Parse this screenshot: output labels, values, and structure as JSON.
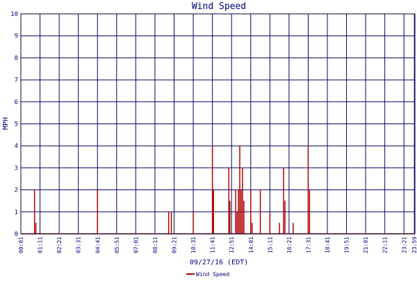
{
  "chart_data": {
    "type": "bar",
    "title": "Wind Speed",
    "ylabel": "MPH",
    "xlabel": "09/27/16 (EDT)",
    "ylim": [
      0,
      10
    ],
    "yticks": [
      "0",
      "1",
      "2",
      "3",
      "4",
      "5",
      "6",
      "7",
      "8",
      "9",
      "10"
    ],
    "xlim": [
      "00:01",
      "24:01"
    ],
    "xticks": [
      "00:01",
      "01:11",
      "02:21",
      "03:31",
      "04:41",
      "05:51",
      "07:01",
      "08:11",
      "09:21",
      "10:31",
      "11:41",
      "12:51",
      "14:01",
      "15:11",
      "16:21",
      "17:31",
      "18:41",
      "19:51",
      "21:01",
      "22:11",
      "23:21",
      "23:59"
    ],
    "grid": true,
    "legend_position": "bottom-center",
    "series": [
      {
        "name": "Wind Speed",
        "color": "#b30000",
        "points": [
          {
            "t": "00:51",
            "v": 2
          },
          {
            "t": "00:56",
            "v": 0.5
          },
          {
            "t": "04:41",
            "v": 2
          },
          {
            "t": "09:01",
            "v": 1
          },
          {
            "t": "09:11",
            "v": 1
          },
          {
            "t": "10:31",
            "v": 1
          },
          {
            "t": "11:41",
            "v": 4
          },
          {
            "t": "11:45",
            "v": 2
          },
          {
            "t": "12:41",
            "v": 3
          },
          {
            "t": "12:45",
            "v": 1.5
          },
          {
            "t": "13:06",
            "v": 2
          },
          {
            "t": "13:11",
            "v": 1
          },
          {
            "t": "13:16",
            "v": 2
          },
          {
            "t": "13:21",
            "v": 4
          },
          {
            "t": "13:26",
            "v": 2
          },
          {
            "t": "13:31",
            "v": 3
          },
          {
            "t": "13:36",
            "v": 1.5
          },
          {
            "t": "14:01",
            "v": 2
          },
          {
            "t": "14:06",
            "v": 0.5
          },
          {
            "t": "14:36",
            "v": 2
          },
          {
            "t": "15:11",
            "v": 1
          },
          {
            "t": "15:46",
            "v": 0.5
          },
          {
            "t": "16:01",
            "v": 3
          },
          {
            "t": "16:06",
            "v": 1.5
          },
          {
            "t": "16:36",
            "v": 0.5
          },
          {
            "t": "17:31",
            "v": 4
          },
          {
            "t": "17:36",
            "v": 2
          }
        ]
      }
    ]
  }
}
